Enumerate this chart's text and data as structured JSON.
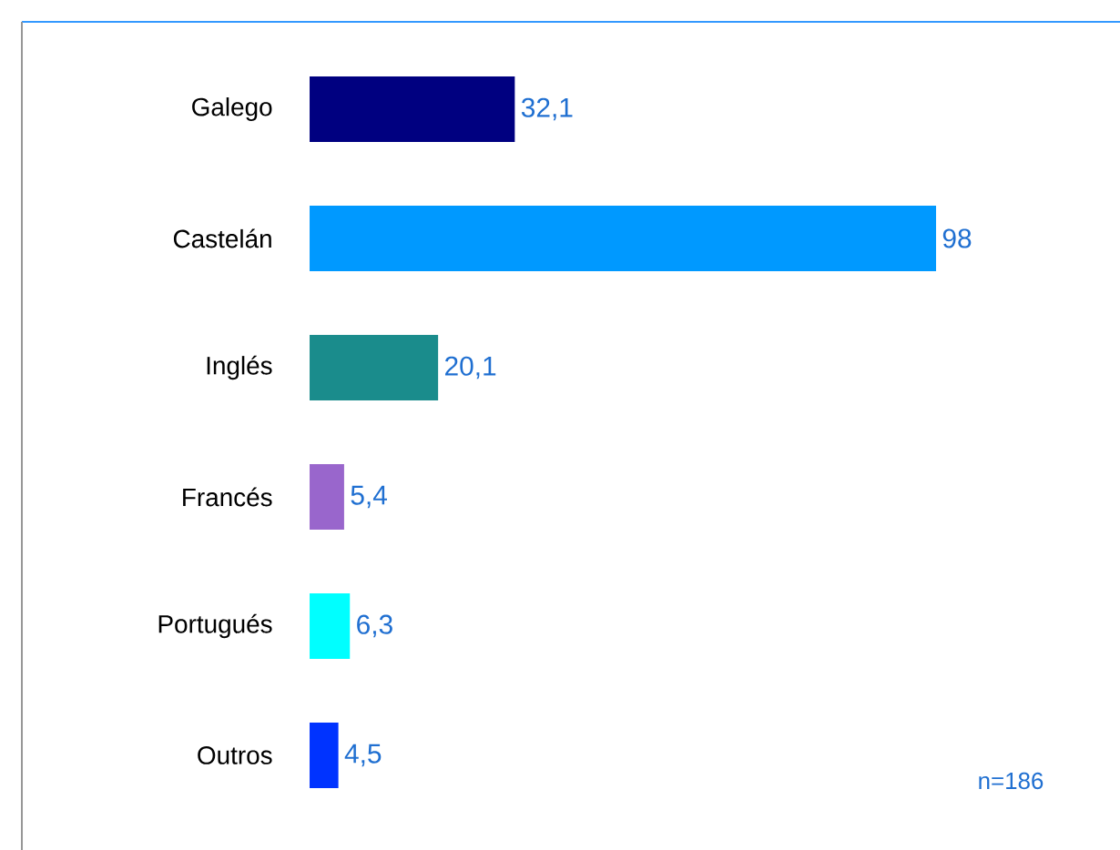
{
  "chart_data": {
    "type": "bar",
    "orientation": "horizontal",
    "categories": [
      "Galego",
      "Castelán",
      "Inglés",
      "Francés",
      "Portugués",
      "Outros"
    ],
    "values": [
      32.1,
      98,
      20.1,
      5.4,
      6.3,
      4.5
    ],
    "colors": [
      "#000080",
      "#0099ff",
      "#1a8c8c",
      "#9966cc",
      "#00ffff",
      "#0033ff"
    ],
    "value_labels": [
      "32,1",
      "98",
      "20,1",
      "5,4",
      "6,3",
      "4,5"
    ],
    "annotations": [
      "n=186"
    ]
  }
}
